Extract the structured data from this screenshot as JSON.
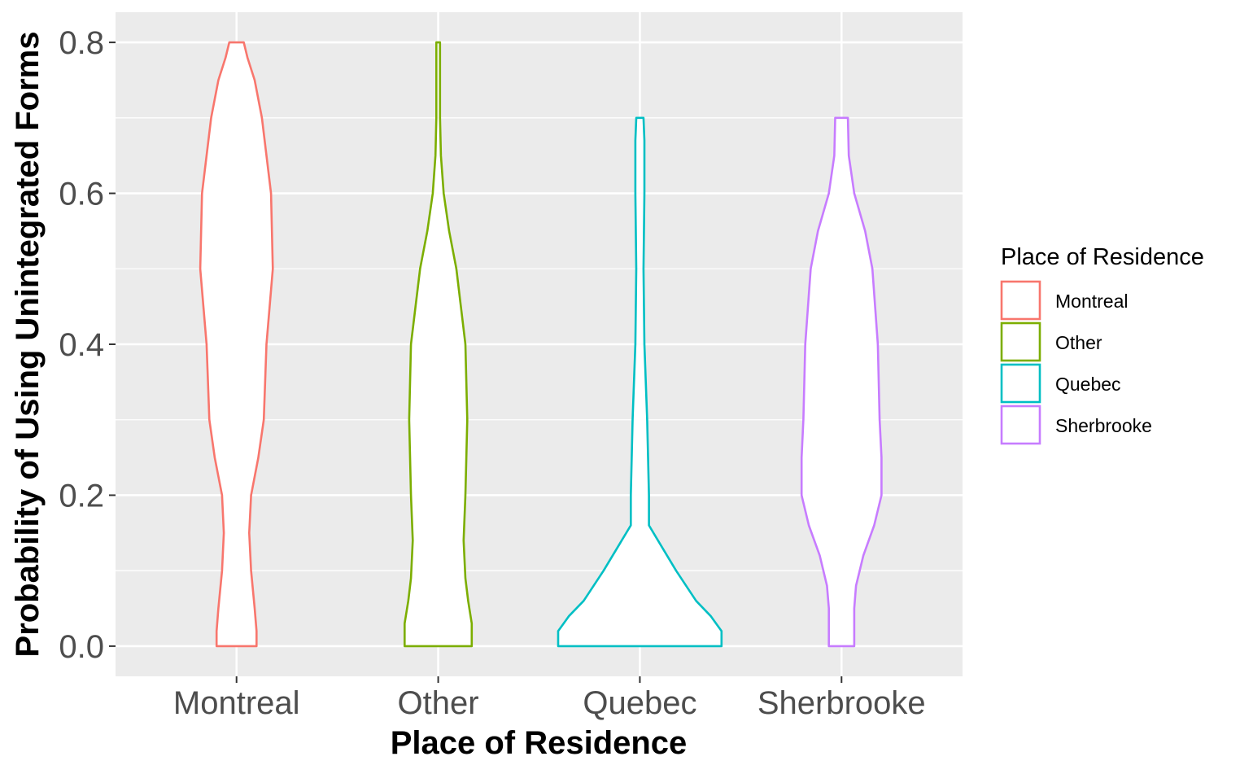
{
  "chart_data": {
    "type": "violin",
    "xlabel": "Place of Residence",
    "ylabel": "Probability of Using Unintegrated Forms",
    "categories": [
      "Montreal",
      "Other",
      "Quebec",
      "Sherbrooke"
    ],
    "ylim": [
      -0.04,
      0.84
    ],
    "yticks": [
      0.0,
      0.2,
      0.4,
      0.6,
      0.8
    ],
    "ytick_labels": [
      "0.0",
      "0.2",
      "0.4",
      "0.6",
      "0.8"
    ],
    "grid": true,
    "legend": {
      "title": "Place of Residence",
      "position": "right",
      "entries": [
        "Montreal",
        "Other",
        "Quebec",
        "Sherbrooke"
      ]
    },
    "colors": {
      "Montreal": "#F8766D",
      "Other": "#7CAE00",
      "Quebec": "#00BFC4",
      "Sherbrooke": "#C77CFF",
      "panel_background": "#EBEBEB",
      "grid": "#FFFFFF"
    },
    "series": [
      {
        "name": "Montreal",
        "range": [
          0.0,
          0.8
        ],
        "density_profile": [
          [
            0.0,
            0.22
          ],
          [
            0.02,
            0.22
          ],
          [
            0.05,
            0.2
          ],
          [
            0.1,
            0.16
          ],
          [
            0.15,
            0.14
          ],
          [
            0.2,
            0.16
          ],
          [
            0.25,
            0.24
          ],
          [
            0.3,
            0.3
          ],
          [
            0.4,
            0.33
          ],
          [
            0.5,
            0.4
          ],
          [
            0.6,
            0.38
          ],
          [
            0.7,
            0.28
          ],
          [
            0.75,
            0.2
          ],
          [
            0.78,
            0.12
          ],
          [
            0.8,
            0.08
          ]
        ]
      },
      {
        "name": "Other",
        "range": [
          0.0,
          0.8
        ],
        "density_profile": [
          [
            0.0,
            0.37
          ],
          [
            0.03,
            0.37
          ],
          [
            0.06,
            0.33
          ],
          [
            0.09,
            0.3
          ],
          [
            0.14,
            0.28
          ],
          [
            0.2,
            0.3
          ],
          [
            0.3,
            0.32
          ],
          [
            0.4,
            0.3
          ],
          [
            0.5,
            0.2
          ],
          [
            0.55,
            0.12
          ],
          [
            0.6,
            0.06
          ],
          [
            0.65,
            0.03
          ],
          [
            0.7,
            0.02
          ],
          [
            0.75,
            0.02
          ],
          [
            0.8,
            0.02
          ]
        ]
      },
      {
        "name": "Quebec",
        "range": [
          0.0,
          0.7
        ],
        "density_profile": [
          [
            0.0,
            0.9
          ],
          [
            0.02,
            0.9
          ],
          [
            0.04,
            0.78
          ],
          [
            0.06,
            0.62
          ],
          [
            0.1,
            0.4
          ],
          [
            0.14,
            0.2
          ],
          [
            0.16,
            0.1
          ],
          [
            0.2,
            0.1
          ],
          [
            0.3,
            0.08
          ],
          [
            0.4,
            0.05
          ],
          [
            0.5,
            0.04
          ],
          [
            0.6,
            0.05
          ],
          [
            0.67,
            0.05
          ],
          [
            0.7,
            0.04
          ]
        ]
      },
      {
        "name": "Sherbrooke",
        "range": [
          0.0,
          0.7
        ],
        "density_profile": [
          [
            0.0,
            0.14
          ],
          [
            0.05,
            0.14
          ],
          [
            0.08,
            0.16
          ],
          [
            0.12,
            0.24
          ],
          [
            0.16,
            0.36
          ],
          [
            0.2,
            0.44
          ],
          [
            0.25,
            0.44
          ],
          [
            0.3,
            0.42
          ],
          [
            0.4,
            0.4
          ],
          [
            0.5,
            0.34
          ],
          [
            0.55,
            0.26
          ],
          [
            0.6,
            0.14
          ],
          [
            0.65,
            0.08
          ],
          [
            0.7,
            0.07
          ]
        ]
      }
    ]
  }
}
